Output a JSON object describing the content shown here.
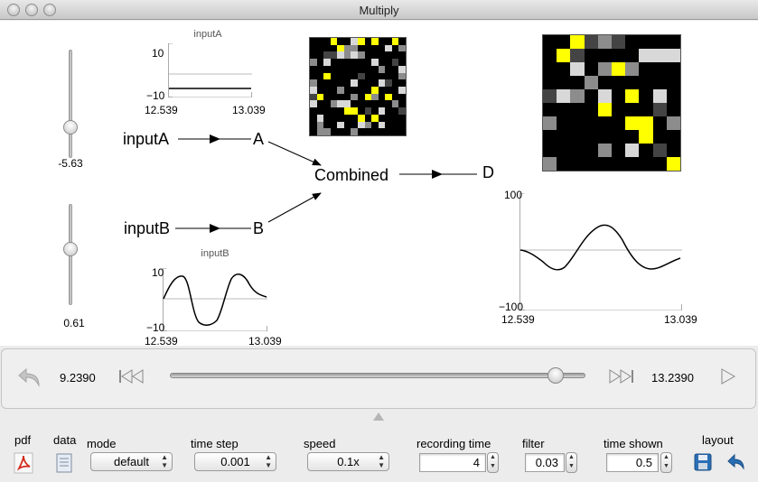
{
  "window": {
    "title": "Multiply"
  },
  "sliders": [
    {
      "value_label": "-5.63"
    },
    {
      "value_label": "0.61"
    }
  ],
  "plots": {
    "inputA": {
      "title": "inputA",
      "ymax": "10",
      "ymin": "−10",
      "xmin": "12.539",
      "xmax": "13.039"
    },
    "inputB": {
      "title": "inputB",
      "ymax": "10",
      "ymin": "−10",
      "xmin": "12.539",
      "xmax": "13.039"
    },
    "output": {
      "title": "",
      "ymax": "100",
      "ymin": "−100",
      "xmin": "12.539",
      "xmax": "13.039"
    }
  },
  "network": {
    "inputA": "inputA",
    "A": "A",
    "inputB": "inputB",
    "B": "B",
    "combined": "Combined",
    "D": "D"
  },
  "transport": {
    "start_time": "9.2390",
    "end_time": "13.2390",
    "position_fraction": 0.945
  },
  "controls": {
    "pdf_label": "pdf",
    "data_label": "data",
    "mode": {
      "label": "mode",
      "value": "default"
    },
    "time_step": {
      "label": "time step",
      "value": "0.001"
    },
    "speed": {
      "label": "speed",
      "value": "0.1x"
    },
    "recording_time": {
      "label": "recording time",
      "value": "4"
    },
    "filter": {
      "label": "filter",
      "value": "0.03"
    },
    "time_shown": {
      "label": "time shown",
      "value": "0.5"
    },
    "layout_label": "layout"
  },
  "colors": {
    "heat_black": "#000000",
    "heat_yellow": "#ffff00",
    "pdf_red": "#d42a1e",
    "save_blue": "#2a6fb5"
  },
  "icons": [
    "close-circle",
    "minimize-circle",
    "zoom-circle",
    "undo-arrow",
    "skip-back",
    "skip-forward",
    "play",
    "pdf-acrobat",
    "data-document",
    "save-floppy",
    "revert-arrow"
  ]
}
